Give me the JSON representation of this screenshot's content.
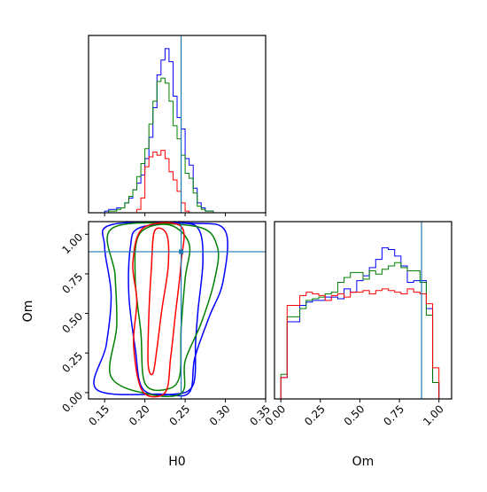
{
  "chart_data": [
    {
      "type": "histogram",
      "panel": "H0 marginal",
      "xlim": [
        0.13,
        0.35
      ],
      "xticks": [
        0.15,
        0.2,
        0.25,
        0.3,
        0.35
      ],
      "truth": 0.245,
      "bin_edges": [
        0.13,
        0.135,
        0.14,
        0.145,
        0.15,
        0.155,
        0.16,
        0.165,
        0.17,
        0.175,
        0.18,
        0.185,
        0.19,
        0.195,
        0.2,
        0.205,
        0.21,
        0.215,
        0.22,
        0.225,
        0.23,
        0.235,
        0.24,
        0.245,
        0.25,
        0.255,
        0.26,
        0.265,
        0.27,
        0.275,
        0.28,
        0.285,
        0.29,
        0.295,
        0.3
      ],
      "ylim": [
        0,
        1.08
      ],
      "series": [
        {
          "color": "#0000ff",
          "values": [
            0,
            0,
            0,
            0,
            0.01,
            0.02,
            0.02,
            0.03,
            0.03,
            0.06,
            0.09,
            0.14,
            0.18,
            0.23,
            0.33,
            0.46,
            0.64,
            0.84,
            0.93,
            1.0,
            0.92,
            0.71,
            0.58,
            0.51,
            0.33,
            0.29,
            0.15,
            0.06,
            0.03,
            0.01,
            0.01,
            0,
            0,
            0
          ]
        },
        {
          "color": "#008000",
          "values": [
            0,
            0,
            0,
            0,
            0,
            0.01,
            0.01,
            0.02,
            0.03,
            0.06,
            0.1,
            0.14,
            0.22,
            0.3,
            0.39,
            0.54,
            0.68,
            0.8,
            0.82,
            0.79,
            0.68,
            0.53,
            0.45,
            0.35,
            0.24,
            0.21,
            0.12,
            0.04,
            0.02,
            0.01,
            0.01,
            0,
            0,
            0
          ]
        },
        {
          "color": "#ff0000",
          "values": [
            0,
            0,
            0,
            0,
            0,
            0,
            0,
            0,
            0,
            0,
            0,
            0,
            0.02,
            0.09,
            0.28,
            0.34,
            0.37,
            0.35,
            0.38,
            0.33,
            0.25,
            0.2,
            0.13,
            0.06,
            0.01,
            0,
            0,
            0,
            0,
            0,
            0,
            0,
            0,
            0
          ]
        }
      ]
    },
    {
      "type": "contour",
      "panel": "H0 vs Om joint",
      "xlabel": "H0",
      "ylabel": "Om",
      "xlim": [
        0.13,
        0.35
      ],
      "ylim": [
        -0.04,
        1.08
      ],
      "xticks": [
        "0.15",
        "0.20",
        "0.25",
        "0.30",
        "0.35"
      ],
      "yticks": [
        "0.00",
        "0.25",
        "0.50",
        "0.75",
        "1.00"
      ],
      "truth": {
        "x": 0.245,
        "y": 0.89
      },
      "series": [
        {
          "color": "#0000ff",
          "contours": [
            [
              [
                0.193,
                1.04
              ],
              [
                0.248,
                1.07
              ],
              [
                0.268,
                1.02
              ],
              [
                0.272,
                0.82
              ],
              [
                0.266,
                0.52
              ],
              [
                0.263,
                0.32
              ],
              [
                0.26,
                0.05
              ],
              [
                0.236,
                -0.01
              ],
              [
                0.198,
                0.02
              ],
              [
                0.188,
                0.28
              ],
              [
                0.18,
                0.62
              ],
              [
                0.182,
                0.92
              ]
            ],
            [
              [
                0.158,
                1.06
              ],
              [
                0.258,
                1.07
              ],
              [
                0.3,
                1.02
              ],
              [
                0.297,
                0.7
              ],
              [
                0.28,
                0.48
              ],
              [
                0.262,
                0.22
              ],
              [
                0.255,
                0.0
              ],
              [
                0.221,
                -0.01
              ],
              [
                0.14,
                0.02
              ],
              [
                0.152,
                0.3
              ],
              [
                0.158,
                0.62
              ],
              [
                0.15,
                0.92
              ]
            ]
          ]
        },
        {
          "color": "#008000",
          "contours": [
            [
              [
                0.193,
                1.0
              ],
              [
                0.23,
                1.06
              ],
              [
                0.255,
                0.94
              ],
              [
                0.25,
                0.72
              ],
              [
                0.245,
                0.4
              ],
              [
                0.243,
                0.1
              ],
              [
                0.226,
                0.02
              ],
              [
                0.2,
                0.06
              ],
              [
                0.195,
                0.38
              ],
              [
                0.188,
                0.72
              ]
            ],
            [
              [
                0.16,
                1.04
              ],
              [
                0.263,
                1.05
              ],
              [
                0.29,
                0.92
              ],
              [
                0.286,
                0.7
              ],
              [
                0.27,
                0.44
              ],
              [
                0.25,
                0.2
              ],
              [
                0.246,
                0.0
              ],
              [
                0.205,
                -0.01
              ],
              [
                0.158,
                0.1
              ],
              [
                0.165,
                0.42
              ],
              [
                0.163,
                0.74
              ]
            ]
          ]
        },
        {
          "color": "#ff0000",
          "contours": [
            [
              [
                0.212,
                1.02
              ],
              [
                0.227,
                1.0
              ],
              [
                0.229,
                0.8
              ],
              [
                0.221,
                0.52
              ],
              [
                0.215,
                0.28
              ],
              [
                0.21,
                0.12
              ],
              [
                0.204,
                0.18
              ],
              [
                0.205,
                0.5
              ],
              [
                0.208,
                0.78
              ]
            ],
            [
              [
                0.198,
                1.04
              ],
              [
                0.245,
                1.05
              ],
              [
                0.245,
                0.82
              ],
              [
                0.238,
                0.5
              ],
              [
                0.232,
                0.22
              ],
              [
                0.225,
                0.0
              ],
              [
                0.197,
                0.01
              ],
              [
                0.186,
                0.3
              ],
              [
                0.19,
                0.58
              ],
              [
                0.185,
                0.82
              ]
            ]
          ]
        }
      ]
    },
    {
      "type": "histogram",
      "panel": "Om marginal",
      "xlabel": "Om",
      "xlim": [
        -0.04,
        1.08
      ],
      "xticks": [
        "0.00",
        "0.25",
        "0.50",
        "0.75",
        "1.00"
      ],
      "truth": 0.89,
      "bin_edges": [
        0.0,
        0.04,
        0.08,
        0.12,
        0.16,
        0.2,
        0.24,
        0.28,
        0.32,
        0.36,
        0.4,
        0.44,
        0.48,
        0.52,
        0.56,
        0.6,
        0.64,
        0.68,
        0.72,
        0.76,
        0.8,
        0.84,
        0.88,
        0.92,
        0.96,
        1.0
      ],
      "ylim": [
        0,
        1.08
      ],
      "series": [
        {
          "color": "#0000ff",
          "values": [
            0.13,
            0.47,
            0.47,
            0.57,
            0.59,
            0.6,
            0.6,
            0.62,
            0.62,
            0.61,
            0.67,
            0.65,
            0.72,
            0.75,
            0.8,
            0.85,
            0.92,
            0.91,
            0.87,
            0.81,
            0.71,
            0.72,
            0.72,
            0.55,
            0.1
          ]
        },
        {
          "color": "#008000",
          "values": [
            0.15,
            0.5,
            0.5,
            0.55,
            0.6,
            0.61,
            0.62,
            0.64,
            0.65,
            0.71,
            0.74,
            0.77,
            0.77,
            0.73,
            0.78,
            0.76,
            0.79,
            0.81,
            0.83,
            0.8,
            0.78,
            0.78,
            0.71,
            0.51,
            0.1
          ]
        },
        {
          "color": "#ff0000",
          "values": [
            0.13,
            0.57,
            0.57,
            0.63,
            0.65,
            0.64,
            0.63,
            0.6,
            0.63,
            0.64,
            0.62,
            0.65,
            0.65,
            0.66,
            0.64,
            0.66,
            0.67,
            0.66,
            0.65,
            0.64,
            0.67,
            0.65,
            0.64,
            0.58,
            0.19
          ]
        }
      ]
    }
  ],
  "truth_color": "#1f77b4"
}
